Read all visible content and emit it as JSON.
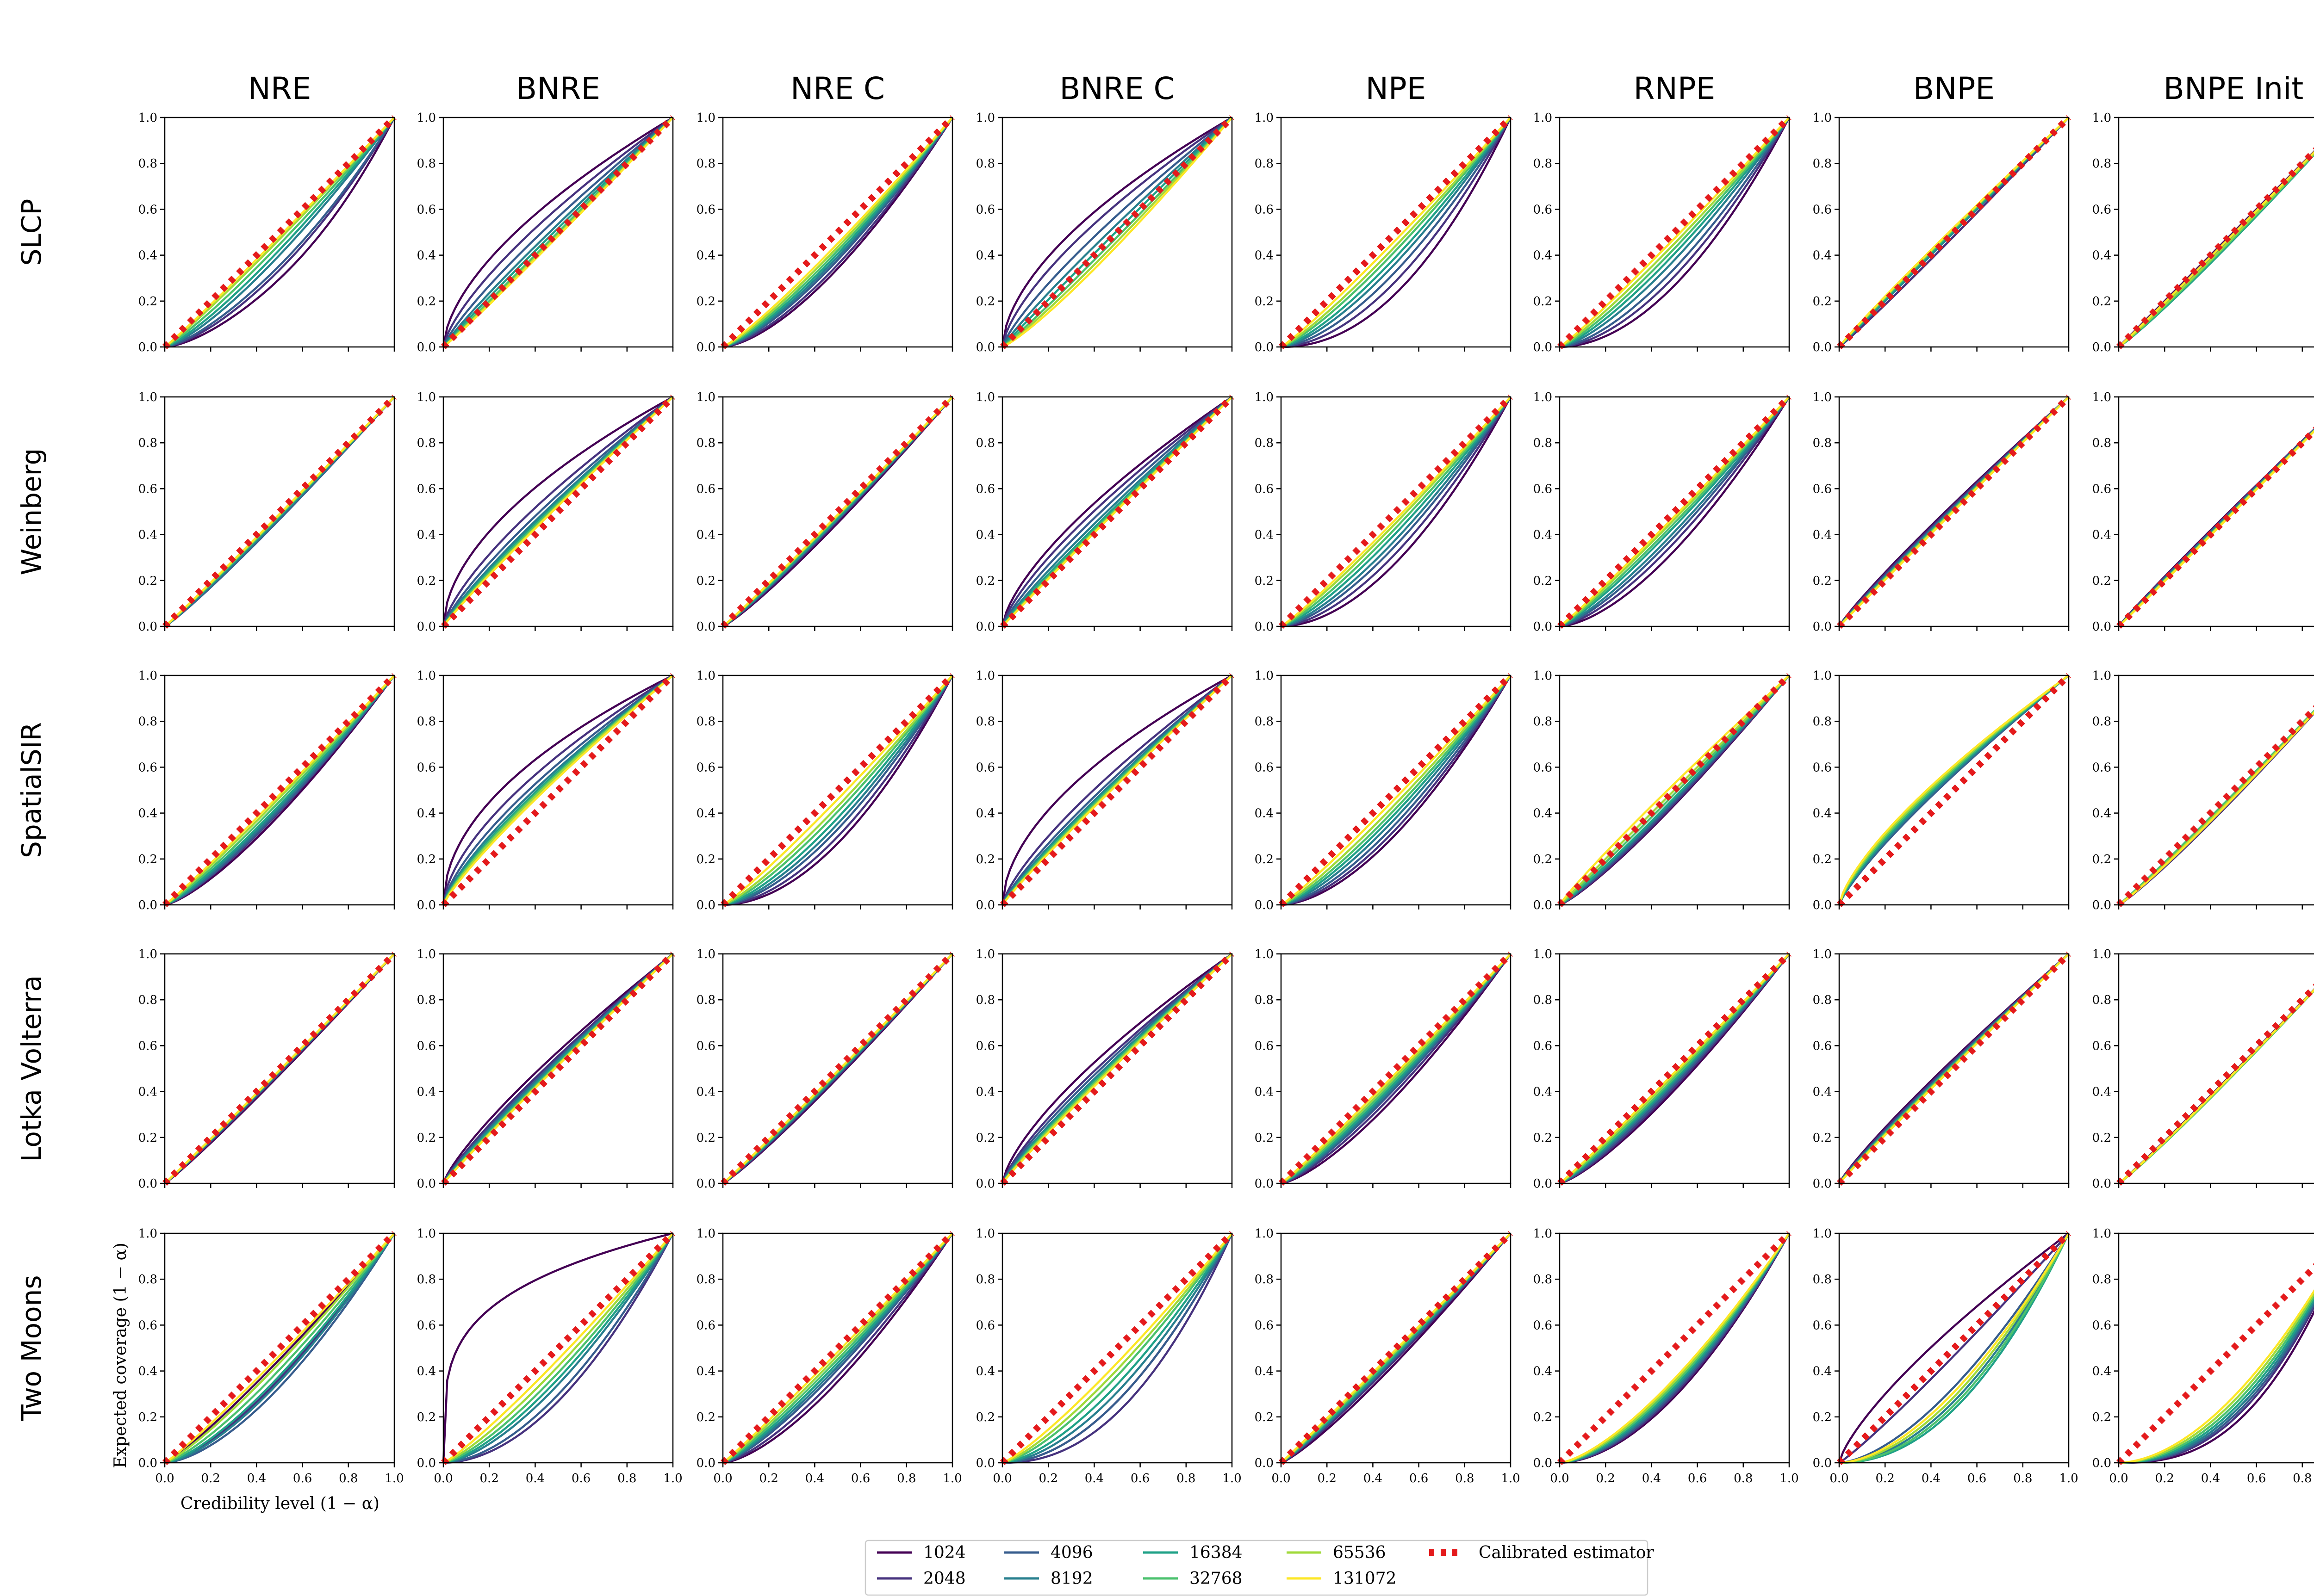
{
  "chart_data": {
    "type": "line",
    "xlabel": "Credibility level (1 − α)",
    "ylabel": "Expected coverage (1 − α)",
    "xlim": [
      0,
      1
    ],
    "ylim": [
      0,
      1
    ],
    "ticks": [
      0.0,
      0.2,
      0.4,
      0.6,
      0.8,
      1.0
    ],
    "tick_labels": [
      "0.0",
      "0.2",
      "0.4",
      "0.6",
      "0.8",
      "1.0"
    ],
    "columns": [
      "NRE",
      "BNRE",
      "NRE C",
      "BNRE C",
      "NPE",
      "RNPE",
      "BNPE",
      "BNPE Init"
    ],
    "rows": [
      "SLCP",
      "Weinberg",
      "SpatialSIR",
      "Lotka Volterra",
      "Two Moons"
    ],
    "legend": {
      "entries": [
        "1024",
        "2048",
        "4096",
        "8192",
        "16384",
        "32768",
        "65536",
        "131072"
      ],
      "calibrated_label": "Calibrated estimator"
    },
    "colors": {
      "series": [
        "#440154",
        "#46327e",
        "#365c8d",
        "#277f8e",
        "#1fa187",
        "#4ac16d",
        "#a0da39",
        "#fde725"
      ],
      "calibrated": "#e41a1c",
      "frame": "#000000"
    },
    "curve_model": "coverage(x) = x^p * (1 + b*sin(pi*x)) clipped to [0,1]; p and b listed per budget from 1024 to 131072",
    "panels": [
      [
        {
          "p": [
            1.6,
            1.5,
            1.42,
            1.32,
            1.24,
            1.16,
            1.09,
            1.05
          ],
          "b": [
            -0.1,
            -0.05,
            -0.05,
            0,
            0,
            0,
            0,
            0
          ]
        },
        {
          "p": [
            0.6,
            0.72,
            0.82,
            0.9,
            0.95,
            1.0,
            1.03,
            1.05
          ],
          "b": [
            0,
            0,
            0,
            0,
            0,
            0,
            0,
            0
          ]
        },
        {
          "p": [
            1.55,
            1.48,
            1.4,
            1.35,
            1.3,
            1.25,
            1.2,
            1.15
          ],
          "b": [
            0,
            0,
            0,
            0,
            0,
            0,
            0,
            0
          ]
        },
        {
          "p": [
            0.58,
            0.68,
            0.8,
            0.9,
            0.98,
            1.06,
            1.12,
            1.18
          ],
          "b": [
            0,
            0,
            0,
            0,
            0,
            0,
            0,
            0
          ]
        },
        {
          "p": [
            2.1,
            1.8,
            1.6,
            1.45,
            1.35,
            1.25,
            1.18,
            1.1
          ],
          "b": [
            0,
            0,
            0,
            0,
            0,
            0,
            0,
            0
          ]
        },
        {
          "p": [
            1.9,
            1.7,
            1.55,
            1.4,
            1.3,
            1.22,
            1.15,
            1.08
          ],
          "b": [
            0,
            0,
            0,
            0,
            0,
            0,
            0,
            0
          ]
        },
        {
          "p": [
            1.05,
            1.05,
            1.0,
            1.0,
            0.98,
            0.96,
            0.95,
            0.94
          ],
          "b": [
            0,
            0,
            0,
            0,
            0,
            0,
            0,
            0
          ]
        },
        {
          "p": [
            1.0,
            1.02,
            1.05,
            1.08,
            1.1,
            1.08,
            1.06,
            1.02
          ],
          "b": [
            0,
            0,
            0,
            0,
            0,
            0,
            0,
            0
          ]
        }
      ],
      [
        {
          "p": [
            1.08,
            1.1,
            1.1,
            1.08,
            1.06,
            1.05,
            1.04,
            1.03
          ],
          "b": [
            0,
            0,
            0,
            0,
            0,
            0,
            0,
            0
          ]
        },
        {
          "p": [
            0.55,
            0.72,
            0.8,
            0.85,
            0.88,
            0.9,
            0.92,
            0.93
          ],
          "b": [
            0,
            0,
            0,
            0,
            0,
            0,
            0,
            0
          ]
        },
        {
          "p": [
            1.15,
            1.12,
            1.1,
            1.1,
            1.08,
            1.06,
            1.05,
            1.04
          ],
          "b": [
            0,
            0,
            0,
            0,
            0,
            0,
            0,
            0
          ]
        },
        {
          "p": [
            0.68,
            0.75,
            0.82,
            0.88,
            0.92,
            0.95,
            0.97,
            0.98
          ],
          "b": [
            0,
            0,
            0,
            0,
            0,
            0,
            0,
            0
          ]
        },
        {
          "p": [
            1.85,
            1.65,
            1.5,
            1.4,
            1.3,
            1.22,
            1.15,
            1.1
          ],
          "b": [
            0,
            0,
            0,
            0,
            0,
            0,
            0,
            0
          ]
        },
        {
          "p": [
            1.6,
            1.45,
            1.35,
            1.28,
            1.2,
            1.15,
            1.1,
            1.06
          ],
          "b": [
            0,
            0,
            0,
            0,
            0,
            0,
            0,
            0
          ]
        },
        {
          "p": [
            0.9,
            0.92,
            0.94,
            0.95,
            0.96,
            0.97,
            0.98,
            0.99
          ],
          "b": [
            0,
            0,
            0,
            0,
            0,
            0,
            0,
            0
          ]
        },
        {
          "p": [
            0.95,
            0.96,
            0.97,
            0.98,
            0.99,
            1.0,
            1.0,
            1.01
          ],
          "b": [
            0,
            0,
            0,
            0,
            0,
            0,
            0,
            0
          ]
        }
      ],
      [
        {
          "p": [
            1.35,
            1.3,
            1.28,
            1.24,
            1.2,
            1.15,
            1.1,
            1.06
          ],
          "b": [
            0,
            0,
            0,
            0,
            0,
            0,
            0,
            0
          ]
        },
        {
          "p": [
            0.5,
            0.62,
            0.7,
            0.75,
            0.78,
            0.8,
            0.82,
            0.85
          ],
          "b": [
            0,
            0,
            0,
            0,
            0,
            0,
            0,
            0
          ]
        },
        {
          "p": [
            1.9,
            1.75,
            1.6,
            1.5,
            1.4,
            1.3,
            1.22,
            1.12
          ],
          "b": [
            0,
            0,
            0,
            0,
            0,
            0,
            0,
            0
          ]
        },
        {
          "p": [
            0.55,
            0.75,
            0.82,
            0.86,
            0.88,
            0.9,
            0.92,
            0.93
          ],
          "b": [
            0,
            0,
            0,
            0,
            0,
            0,
            0,
            0
          ]
        },
        {
          "p": [
            1.7,
            1.6,
            1.5,
            1.4,
            1.32,
            1.25,
            1.18,
            1.1
          ],
          "b": [
            0,
            0,
            0,
            0,
            0,
            0,
            0,
            0
          ]
        },
        {
          "p": [
            1.2,
            1.18,
            1.15,
            1.12,
            1.1,
            1.05,
            1.0,
            0.92
          ],
          "b": [
            0,
            0,
            0,
            0,
            0,
            0,
            0,
            0
          ]
        },
        {
          "p": [
            0.78,
            0.8,
            0.82,
            0.8,
            0.78,
            0.76,
            0.74,
            0.72
          ],
          "b": [
            0,
            0,
            0,
            0,
            0,
            0,
            0,
            0
          ]
        },
        {
          "p": [
            1.1,
            1.12,
            1.08,
            1.05,
            1.05,
            1.05,
            1.08,
            1.1
          ],
          "b": [
            0,
            0,
            0,
            0,
            0,
            0,
            0,
            0
          ]
        }
      ],
      [
        {
          "p": [
            1.08,
            1.06,
            1.05,
            1.04,
            1.03,
            1.03,
            1.02,
            1.02
          ],
          "b": [
            0,
            0,
            0,
            0,
            0,
            0,
            0,
            0
          ]
        },
        {
          "p": [
            0.8,
            0.85,
            0.88,
            0.9,
            0.92,
            0.94,
            0.95,
            0.96
          ],
          "b": [
            0,
            0,
            0,
            0,
            0,
            0,
            0,
            0
          ]
        },
        {
          "p": [
            1.12,
            1.1,
            1.08,
            1.08,
            1.06,
            1.05,
            1.04,
            1.03
          ],
          "b": [
            0,
            0,
            0,
            0,
            0,
            0,
            0,
            0
          ]
        },
        {
          "p": [
            0.7,
            0.78,
            0.82,
            0.86,
            0.88,
            0.9,
            0.92,
            0.94
          ],
          "b": [
            0,
            0,
            0,
            0,
            0,
            0,
            0,
            0
          ]
        },
        {
          "p": [
            1.4,
            1.32,
            1.26,
            1.22,
            1.18,
            1.14,
            1.1,
            1.06
          ],
          "b": [
            0,
            0,
            0,
            0,
            0,
            0,
            0,
            0
          ]
        },
        {
          "p": [
            1.3,
            1.26,
            1.22,
            1.18,
            1.15,
            1.12,
            1.08,
            1.05
          ],
          "b": [
            0,
            0,
            0,
            0,
            0,
            0,
            0,
            0
          ]
        },
        {
          "p": [
            0.88,
            0.9,
            0.92,
            0.93,
            0.94,
            0.95,
            0.96,
            0.97
          ],
          "b": [
            0,
            0,
            0,
            0,
            0,
            0,
            0,
            0
          ]
        },
        {
          "p": [
            1.05,
            1.06,
            1.06,
            1.07,
            1.08,
            1.08,
            1.07,
            1.06
          ],
          "b": [
            0,
            0,
            0,
            0,
            0,
            0,
            0,
            0
          ]
        }
      ],
      [
        {
          "p": [
            1.15,
            1.45,
            1.6,
            1.5,
            1.4,
            1.3,
            1.2,
            1.1
          ],
          "b": [
            0,
            0,
            0,
            0,
            0,
            0,
            0,
            0
          ]
        },
        {
          "p": [
            0.25,
            1.9,
            1.75,
            1.55,
            1.45,
            1.35,
            1.25,
            1.15
          ],
          "b": [
            0,
            0,
            0,
            0,
            0,
            0,
            0,
            0
          ]
        },
        {
          "p": [
            1.5,
            1.4,
            1.3,
            1.25,
            1.2,
            1.15,
            1.1,
            1.05
          ],
          "b": [
            0,
            0,
            0,
            0,
            0,
            0,
            0,
            0
          ]
        },
        {
          "p": [
            1.9,
            2.2,
            1.9,
            1.7,
            1.55,
            1.4,
            1.3,
            1.2
          ],
          "b": [
            0,
            0,
            0,
            0,
            0,
            0,
            0,
            0
          ]
        },
        {
          "p": [
            1.2,
            1.15,
            1.12,
            1.1,
            1.08,
            1.06,
            1.04,
            1.02
          ],
          "b": [
            0,
            0,
            0,
            0,
            0,
            0,
            0,
            0
          ]
        },
        {
          "p": [
            1.8,
            1.75,
            1.7,
            1.65,
            1.6,
            1.55,
            1.5,
            1.45
          ],
          "b": [
            0,
            0,
            0,
            0,
            0,
            0,
            0,
            0
          ]
        },
        {
          "p": [
            0.75,
            1.1,
            1.6,
            1.9,
            2.1,
            2.0,
            1.8,
            1.7
          ],
          "b": [
            0,
            0,
            0,
            0,
            0,
            0,
            0,
            0
          ]
        },
        {
          "p": [
            2.6,
            2.4,
            2.3,
            2.2,
            2.1,
            2.0,
            1.9,
            1.8
          ],
          "b": [
            0,
            0,
            0,
            0,
            0,
            0,
            0,
            0
          ]
        }
      ]
    ]
  }
}
